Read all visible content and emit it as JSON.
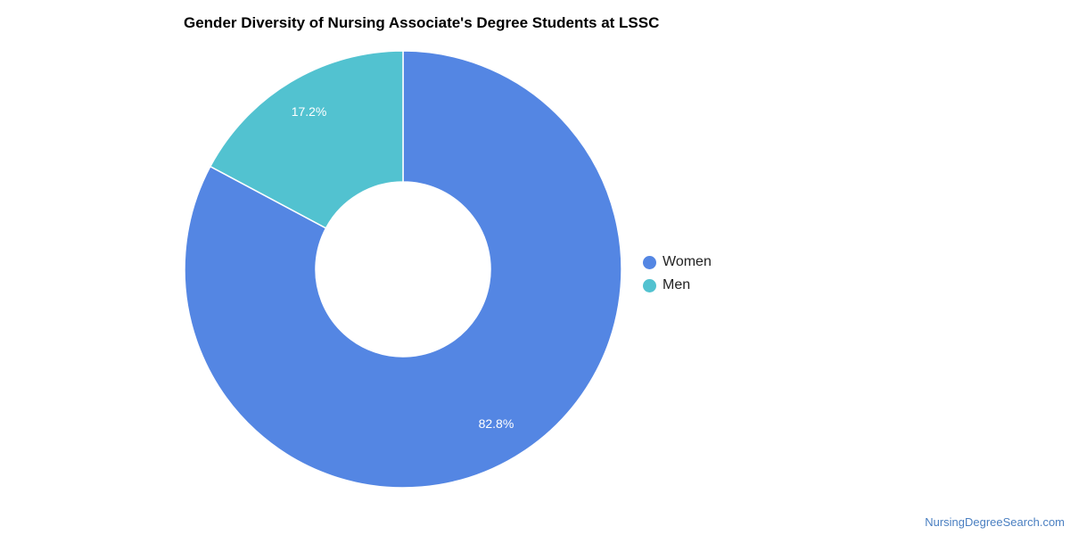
{
  "chart_data": {
    "type": "pie",
    "donut": true,
    "title": "Gender Diversity of Nursing Associate's Degree Students at LSSC",
    "categories": [
      "Women",
      "Men"
    ],
    "values": [
      82.8,
      17.2
    ],
    "labels": [
      "82.8%",
      "17.2%"
    ],
    "colors": [
      "#5486e3",
      "#52c2d0"
    ],
    "legend_position": "right"
  },
  "source": "NursingDegreeSearch.com"
}
